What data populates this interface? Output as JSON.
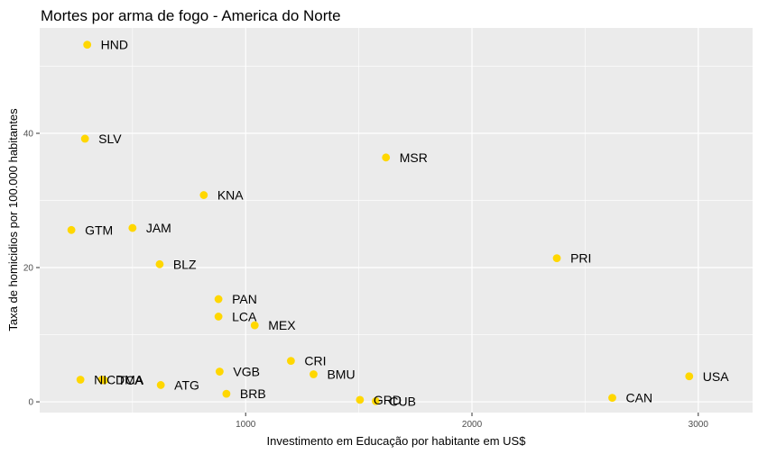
{
  "chart_data": {
    "type": "scatter",
    "title": "Mortes por arma de fogo - America do Norte",
    "xlabel": "Investimento em Educação por habitante em US$",
    "ylabel": "Taxa de homicidios por 100.000 habitantes",
    "xlim": [
      90,
      3240
    ],
    "ylim": [
      -1.6,
      55.7
    ],
    "x_ticks": [
      1000,
      2000,
      3000
    ],
    "y_ticks": [
      0,
      20,
      40
    ],
    "grid": true,
    "point_color": "#FFD700",
    "panel_color": "#EBEBEB",
    "points": [
      {
        "label": "HND",
        "x": 300,
        "y": 53.2
      },
      {
        "label": "SLV",
        "x": 290,
        "y": 39.2
      },
      {
        "label": "MSR",
        "x": 1620,
        "y": 36.4
      },
      {
        "label": "KNA",
        "x": 815,
        "y": 30.8
      },
      {
        "label": "GTM",
        "x": 230,
        "y": 25.6
      },
      {
        "label": "JAM",
        "x": 500,
        "y": 25.9
      },
      {
        "label": "PRI",
        "x": 2375,
        "y": 21.4
      },
      {
        "label": "BLZ",
        "x": 620,
        "y": 20.5
      },
      {
        "label": "PAN",
        "x": 880,
        "y": 15.3
      },
      {
        "label": "LCA",
        "x": 880,
        "y": 12.7
      },
      {
        "label": "MEX",
        "x": 1040,
        "y": 11.4
      },
      {
        "label": "CRI",
        "x": 1200,
        "y": 6.1
      },
      {
        "label": "VGB",
        "x": 885,
        "y": 4.5
      },
      {
        "label": "BMU",
        "x": 1300,
        "y": 4.1
      },
      {
        "label": "USA",
        "x": 2960,
        "y": 3.8
      },
      {
        "label": "NIC",
        "x": 270,
        "y": 3.3
      },
      {
        "label": "DMA",
        "x": 365,
        "y": 3.3
      },
      {
        "label": "TCA",
        "x": 375,
        "y": 3.2
      },
      {
        "label": "ATG",
        "x": 625,
        "y": 2.5
      },
      {
        "label": "BRB",
        "x": 915,
        "y": 1.2
      },
      {
        "label": "CAN",
        "x": 2620,
        "y": 0.6
      },
      {
        "label": "GRD",
        "x": 1505,
        "y": 0.3
      },
      {
        "label": "CUB",
        "x": 1575,
        "y": 0.1
      }
    ]
  }
}
